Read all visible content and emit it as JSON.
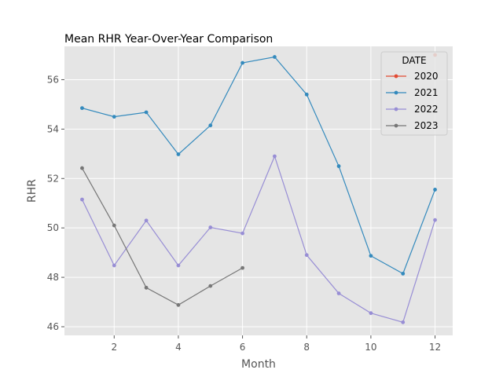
{
  "chart_data": {
    "type": "line",
    "title": "Mean  RHR Year-Over-Year Comparison",
    "xlabel": "Month",
    "ylabel": "RHR",
    "xlim": [
      0.45,
      12.55
    ],
    "ylim": [
      45.65,
      57.35
    ],
    "xticks": [
      2,
      4,
      6,
      8,
      10,
      12
    ],
    "yticks": [
      46,
      48,
      50,
      52,
      54,
      56
    ],
    "grid": true,
    "legend": {
      "title": "DATE",
      "placement": "top-right"
    },
    "series": [
      {
        "name": "2020",
        "color": "#E24A33",
        "x": [
          12
        ],
        "y": [
          57.0
        ]
      },
      {
        "name": "2021",
        "color": "#348ABD",
        "x": [
          1,
          2,
          3,
          4,
          5,
          6,
          7,
          8,
          9,
          10,
          11,
          12
        ],
        "y": [
          54.85,
          54.5,
          54.68,
          52.98,
          54.15,
          56.68,
          56.92,
          55.4,
          52.5,
          48.87,
          48.15,
          51.55
        ]
      },
      {
        "name": "2022",
        "color": "#988ED5",
        "x": [
          1,
          2,
          3,
          4,
          5,
          6,
          7,
          8,
          9,
          10,
          11,
          12
        ],
        "y": [
          51.15,
          48.48,
          50.3,
          48.48,
          50.02,
          49.78,
          52.9,
          48.9,
          47.35,
          46.55,
          46.18,
          50.32
        ]
      },
      {
        "name": "2023",
        "color": "#777777",
        "x": [
          1,
          2,
          3,
          4,
          5,
          6
        ],
        "y": [
          52.42,
          50.1,
          47.58,
          46.88,
          47.65,
          48.38
        ]
      }
    ]
  }
}
